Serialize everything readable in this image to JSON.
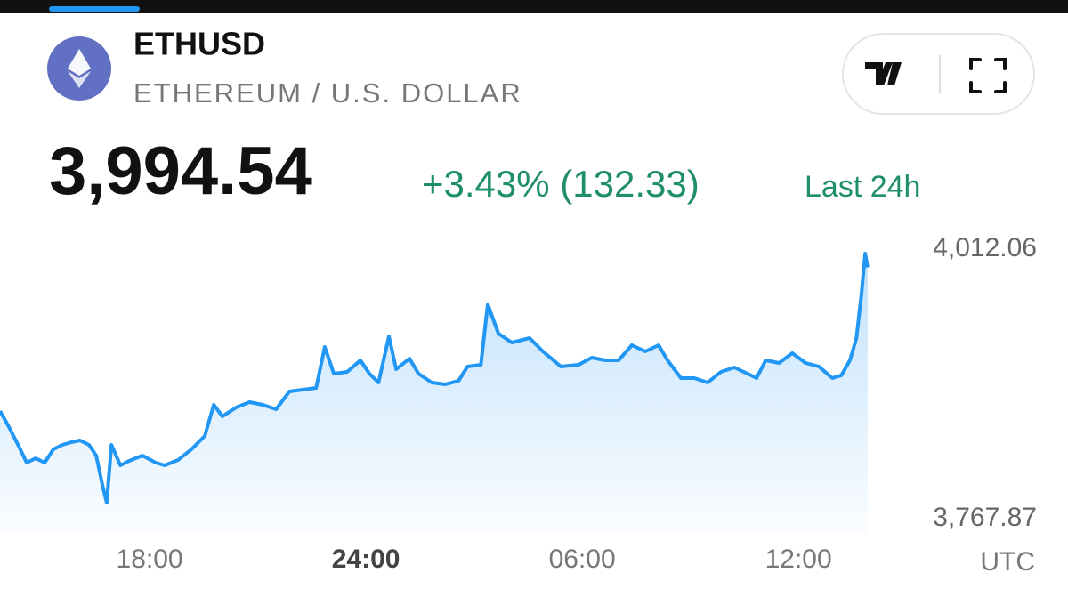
{
  "header": {
    "symbol": "ETHUSD",
    "name": "ETHEREUM / U.S. DOLLAR",
    "price": "3,994.54",
    "change": "+3.43% (132.33)",
    "period": "Last 24h"
  },
  "chart_data": {
    "type": "line",
    "color": "#2196f3",
    "x_unit": "UTC",
    "xlim": [
      13.85,
      38.54
    ],
    "xticks": [
      {
        "value": 18,
        "label": "18:00"
      },
      {
        "value": 24,
        "label": "24:00"
      },
      {
        "value": 30,
        "label": "06:00"
      },
      {
        "value": 36,
        "label": "12:00"
      }
    ],
    "ylim": [
      3767.87,
      4012.06
    ],
    "yticks": [
      {
        "value": 4012.06,
        "label": "4,012.06"
      },
      {
        "value": 3767.87,
        "label": "3,767.87"
      }
    ],
    "x": [
      13.85,
      14.1,
      14.35,
      14.59,
      14.84,
      15.09,
      15.33,
      15.58,
      15.83,
      16.07,
      16.32,
      16.52,
      16.69,
      16.81,
      16.94,
      17.19,
      17.43,
      17.8,
      18.17,
      18.42,
      18.79,
      19.16,
      19.53,
      19.78,
      20.02,
      20.4,
      20.77,
      21.14,
      21.51,
      21.88,
      22.25,
      22.62,
      22.86,
      23.11,
      23.48,
      23.85,
      24.1,
      24.35,
      24.64,
      24.84,
      25.21,
      25.46,
      25.83,
      26.2,
      26.57,
      26.82,
      27.19,
      27.38,
      27.68,
      28.05,
      28.54,
      28.91,
      29.41,
      29.9,
      30.27,
      30.64,
      31.01,
      31.38,
      31.75,
      32.12,
      32.37,
      32.74,
      33.11,
      33.48,
      33.85,
      34.22,
      34.59,
      34.84,
      35.09,
      35.46,
      35.83,
      36.2,
      36.57,
      36.94,
      37.19,
      37.43,
      37.61,
      37.75,
      37.85,
      37.92
    ],
    "values": [
      3865.39,
      3850.88,
      3834.76,
      3818.64,
      3822.67,
      3818.64,
      3830.73,
      3834.76,
      3837.18,
      3838.79,
      3834.76,
      3825.09,
      3798.5,
      3782.38,
      3834.76,
      3816.23,
      3820.26,
      3825.09,
      3818.64,
      3816.23,
      3821.06,
      3830.73,
      3842.82,
      3871.03,
      3860.55,
      3868.61,
      3873.45,
      3871.03,
      3867.0,
      3883.12,
      3884.73,
      3886.34,
      3923.41,
      3899.23,
      3900.85,
      3911.32,
      3899.23,
      3891.17,
      3933.08,
      3903.26,
      3912.93,
      3899.23,
      3891.17,
      3889.56,
      3892.79,
      3905.68,
      3907.29,
      3962.09,
      3935.5,
      3927.44,
      3931.47,
      3919.38,
      3905.68,
      3907.29,
      3913.74,
      3911.32,
      3911.32,
      3925.02,
      3919.38,
      3925.02,
      3911.32,
      3895.2,
      3895.2,
      3891.17,
      3900.85,
      3904.88,
      3899.23,
      3895.2,
      3911.32,
      3908.9,
      3917.77,
      3908.9,
      3905.68,
      3895.2,
      3897.62,
      3911.32,
      3931.47,
      3971.76,
      4008.03,
      3995.5
    ]
  }
}
